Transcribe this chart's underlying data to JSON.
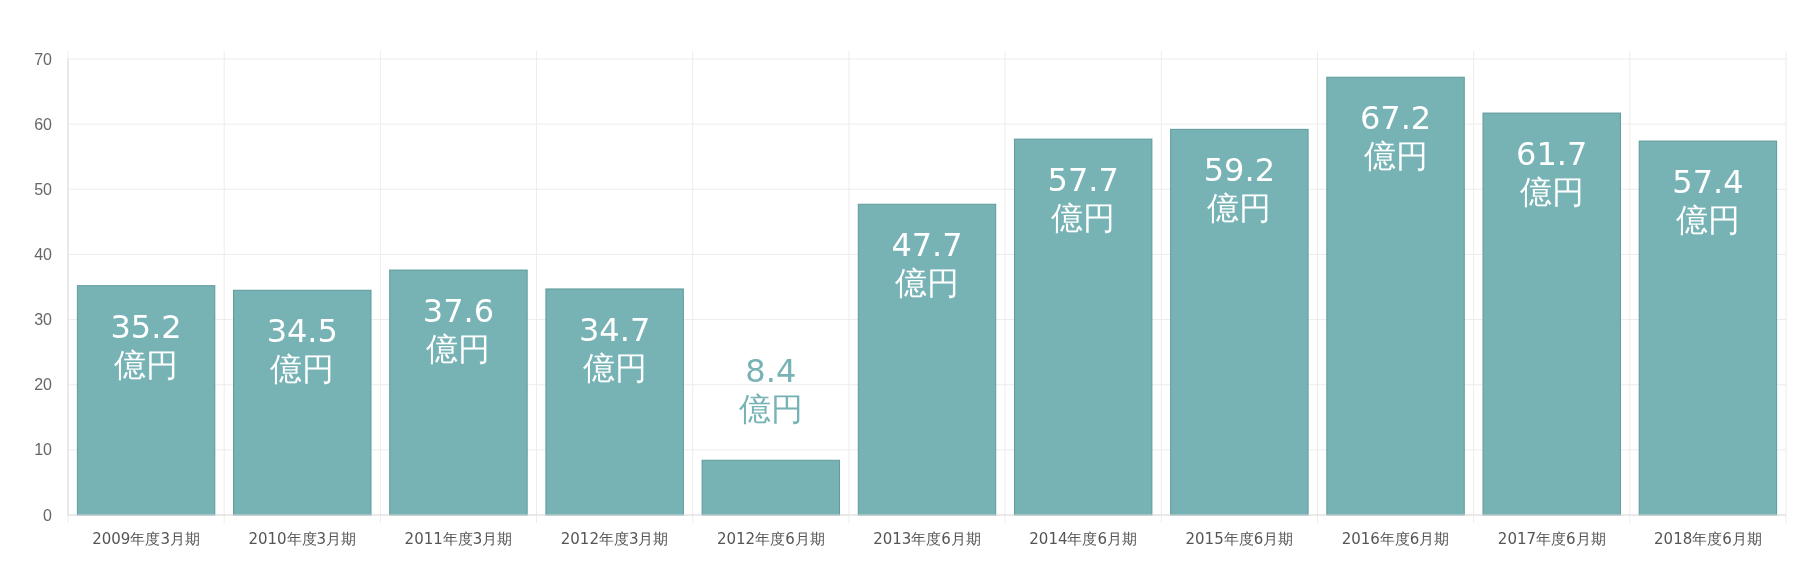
{
  "chart_data": {
    "type": "bar",
    "categories": [
      "2009年度3月期",
      "2010年度3月期",
      "2011年度3月期",
      "2012年度3月期",
      "2012年度6月期",
      "2013年度6月期",
      "2014年度6月期",
      "2015年度6月期",
      "2016年度6月期",
      "2017年度6月期",
      "2018年度6月期"
    ],
    "values": [
      35.2,
      34.5,
      37.6,
      34.7,
      8.4,
      47.7,
      57.7,
      59.2,
      67.2,
      61.7,
      57.4
    ],
    "value_labels": [
      "35.2\n億円",
      "34.5\n億円",
      "37.6\n億円",
      "34.7\n億円",
      "8.4\n億円",
      "47.7\n億円",
      "57.7\n億円",
      "59.2\n億円",
      "67.2\n億円",
      "61.7\n億円",
      "57.4\n億円"
    ],
    "color": "#77b3b5",
    "ylim": [
      0,
      70
    ],
    "yticks": [
      0,
      10,
      20,
      30,
      40,
      50,
      60,
      70
    ],
    "grid": true
  }
}
